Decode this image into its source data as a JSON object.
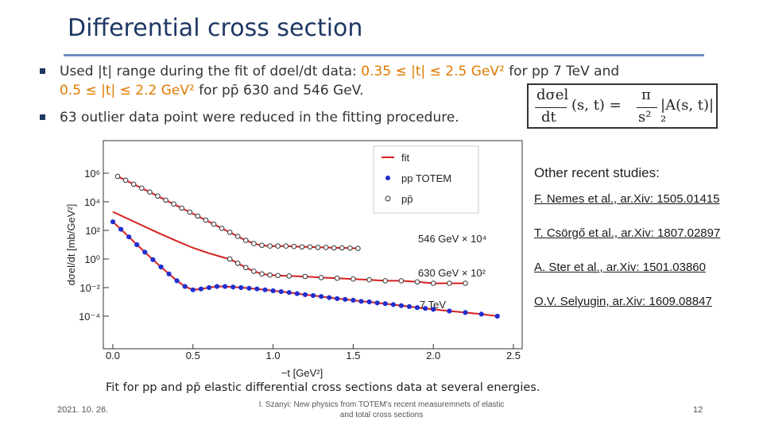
{
  "slide": {
    "title": "Differential cross section",
    "bullets": [
      {
        "pre": "Used |t| range during the fit of dσel/dt data: ",
        "hl": "0.35 ≤ |t| ≤ 2.5 GeV²",
        "post": " for pp 7 TeV and"
      },
      {
        "pre": "0.5 ≤ |t| ≤ 2.2 GeV²",
        "post": " for pp̄ 630 and 546 GeV."
      },
      {
        "text": "63 outlier data point were reduced in the fitting procedure."
      }
    ],
    "formula": {
      "lhs_num": "dσel",
      "lhs_den": "dt",
      "args": "(s, t) =",
      "rhs_num": "π",
      "rhs_den": "s²",
      "rhs_tail": "|A(s, t)|²"
    },
    "studies": {
      "title": "Other recent studies:",
      "refs": [
        "F. Nemes et al., ar.Xiv: 1505.01415",
        "T. Csörgő et al., ar.Xiv: 1807.02897",
        "A. Ster et al., ar.Xiv: 1501.03860",
        "O.V. Selyugin, ar.Xiv: 1609.08847"
      ]
    },
    "caption": "Fit for pp and pp̄ elastic differential cross sections data at several energies.",
    "footer": {
      "date": "2021. 10. 26.",
      "text": "I. Szanyi: New physics from TOTEM's recent measuremnets of elastic and total cross sections",
      "page": "12"
    }
  },
  "chart_data": {
    "type": "scatter",
    "xlabel": "−t [GeV²]",
    "ylabel": "dσel/dt [mb/GeV²]",
    "xlim": [
      0,
      2.5
    ],
    "ylim_log10": [
      -6,
      8
    ],
    "y_scale": "log",
    "x_ticks": [
      "0.0",
      "0.5",
      "1.0",
      "1.5",
      "2.0",
      "2.5"
    ],
    "y_ticks": [
      "10⁶",
      "10⁴",
      "10²",
      "10⁰",
      "10⁻²",
      "10⁻⁴"
    ],
    "legend": {
      "placement": "top-right",
      "entries": [
        "fit",
        "pp TOTEM",
        "pp̄"
      ]
    },
    "colors": {
      "fit": "#d62020",
      "pp": "#1f2fd0",
      "ppbar": "#333333"
    },
    "series": [
      {
        "name": "546 GeV × 10⁴",
        "marker": "open",
        "x": [
          0.03,
          0.08,
          0.13,
          0.18,
          0.23,
          0.28,
          0.33,
          0.38,
          0.43,
          0.48,
          0.53,
          0.58,
          0.63,
          0.68,
          0.73,
          0.78,
          0.83,
          0.88,
          0.93,
          0.98,
          1.03,
          1.08,
          1.13,
          1.18,
          1.23,
          1.28,
          1.33,
          1.38,
          1.43,
          1.48,
          1.53
        ],
        "y": [
          600000.0,
          320000.0,
          170000.0,
          90000.0,
          48000.0,
          25000.0,
          13000.0,
          7000.0,
          3600.0,
          1900.0,
          1000.0,
          520,
          270,
          140,
          74,
          38,
          20,
          12,
          9,
          8,
          8,
          8,
          7.5,
          7,
          7,
          6.5,
          6.5,
          6,
          6,
          5.8,
          5.5
        ]
      },
      {
        "name": "630 GeV × 10²",
        "marker": "open",
        "x": [
          0.73,
          0.78,
          0.83,
          0.88,
          0.93,
          0.98,
          1.03,
          1.1,
          1.2,
          1.3,
          1.4,
          1.5,
          1.6,
          1.7,
          1.8,
          1.9,
          2.0,
          2.1,
          2.2
        ],
        "y": [
          1.0,
          0.5,
          0.25,
          0.14,
          0.09,
          0.075,
          0.07,
          0.065,
          0.06,
          0.05,
          0.045,
          0.04,
          0.035,
          0.03,
          0.03,
          0.025,
          0.02,
          0.02,
          0.02
        ]
      },
      {
        "name": "7 TeV",
        "marker": "filled",
        "x": [
          0.0,
          0.05,
          0.1,
          0.15,
          0.2,
          0.25,
          0.3,
          0.35,
          0.4,
          0.45,
          0.5,
          0.55,
          0.6,
          0.65,
          0.7,
          0.75,
          0.8,
          0.85,
          0.9,
          0.95,
          1.0,
          1.05,
          1.1,
          1.15,
          1.2,
          1.25,
          1.3,
          1.35,
          1.4,
          1.45,
          1.5,
          1.55,
          1.6,
          1.65,
          1.7,
          1.75,
          1.8,
          1.85,
          1.9,
          1.95,
          2.0,
          2.1,
          2.2,
          2.3,
          2.4
        ],
        "y": [
          400,
          120,
          35,
          10,
          3,
          0.9,
          0.28,
          0.09,
          0.03,
          0.012,
          0.007,
          0.008,
          0.01,
          0.012,
          0.012,
          0.011,
          0.01,
          0.009,
          0.008,
          0.007,
          0.006,
          0.0052,
          0.0045,
          0.0038,
          0.0032,
          0.0028,
          0.0024,
          0.002,
          0.0017,
          0.0015,
          0.0013,
          0.0011,
          0.001,
          0.00085,
          0.00075,
          0.00065,
          0.00055,
          0.00047,
          0.0004,
          0.00035,
          0.0003,
          0.00023,
          0.00018,
          0.00014,
          0.0001
        ]
      }
    ]
  }
}
